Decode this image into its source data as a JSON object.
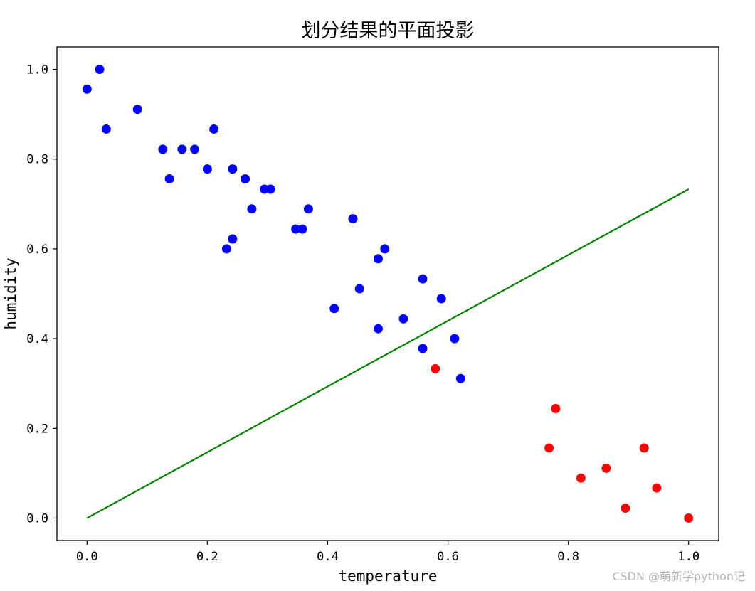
{
  "chart_data": {
    "type": "scatter",
    "title": "划分结果的平面投影",
    "xlabel": "temperature",
    "ylabel": "humidity",
    "xlim": [
      -0.05,
      1.05
    ],
    "ylim": [
      -0.05,
      1.05
    ],
    "xticks": [
      0.0,
      0.2,
      0.4,
      0.6,
      0.8,
      1.0
    ],
    "yticks": [
      0.0,
      0.2,
      0.4,
      0.6,
      0.8,
      1.0
    ],
    "xtick_labels": [
      "0.0",
      "0.2",
      "0.4",
      "0.6",
      "0.8",
      "1.0"
    ],
    "ytick_labels": [
      "0.0",
      "0.2",
      "0.4",
      "0.6",
      "0.8",
      "1.0"
    ],
    "grid": false,
    "series": [
      {
        "color": "#0000ff",
        "points": [
          [
            0.0,
            0.956
          ],
          [
            0.021,
            1.0
          ],
          [
            0.032,
            0.867
          ],
          [
            0.084,
            0.911
          ],
          [
            0.126,
            0.822
          ],
          [
            0.137,
            0.756
          ],
          [
            0.158,
            0.822
          ],
          [
            0.179,
            0.822
          ],
          [
            0.2,
            0.778
          ],
          [
            0.211,
            0.867
          ],
          [
            0.232,
            0.6
          ],
          [
            0.242,
            0.778
          ],
          [
            0.242,
            0.622
          ],
          [
            0.263,
            0.756
          ],
          [
            0.274,
            0.689
          ],
          [
            0.295,
            0.733
          ],
          [
            0.305,
            0.733
          ],
          [
            0.347,
            0.644
          ],
          [
            0.358,
            0.644
          ],
          [
            0.368,
            0.689
          ],
          [
            0.411,
            0.467
          ],
          [
            0.442,
            0.667
          ],
          [
            0.453,
            0.511
          ],
          [
            0.484,
            0.578
          ],
          [
            0.484,
            0.422
          ],
          [
            0.495,
            0.6
          ],
          [
            0.526,
            0.444
          ],
          [
            0.558,
            0.533
          ],
          [
            0.558,
            0.378
          ],
          [
            0.589,
            0.489
          ],
          [
            0.611,
            0.4
          ],
          [
            0.621,
            0.311
          ]
        ]
      },
      {
        "color": "#ff0000",
        "points": [
          [
            0.579,
            0.333
          ],
          [
            0.768,
            0.156
          ],
          [
            0.779,
            0.244
          ],
          [
            0.821,
            0.089
          ],
          [
            0.863,
            0.111
          ],
          [
            0.895,
            0.022
          ],
          [
            0.926,
            0.156
          ],
          [
            0.947,
            0.067
          ],
          [
            1.0,
            0.0
          ]
        ]
      }
    ],
    "line": {
      "color": "#008000",
      "x": [
        0.0,
        1.0
      ],
      "y": [
        0.0,
        0.733
      ]
    }
  },
  "watermark": "CSDN @萌新学python记"
}
